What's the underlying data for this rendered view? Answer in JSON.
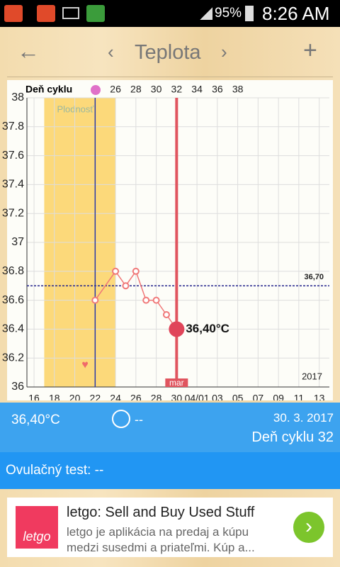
{
  "status_bar": {
    "battery": "95%",
    "time": "8:26 AM"
  },
  "header": {
    "title": "Teplota"
  },
  "chart_data": {
    "type": "line",
    "x2_label": "Deň cyklu",
    "x": [
      22,
      24,
      25,
      26,
      27,
      28,
      29,
      30
    ],
    "series": [
      {
        "color": "#f07878",
        "values": [
          36.6,
          36.8,
          36.7,
          36.8,
          36.6,
          36.6,
          36.5,
          36.4
        ],
        "value_labels": [
          null,
          null,
          null,
          null,
          null,
          null,
          null,
          "36,40°C"
        ]
      }
    ],
    "xlim": [
      15.3,
      45
    ],
    "xticks": [
      16,
      18,
      20,
      22,
      24,
      26,
      28,
      30,
      {
        "value": 32,
        "label": "04/01"
      },
      {
        "value": 34,
        "label": "03"
      },
      {
        "value": 36,
        "label": "05"
      },
      {
        "value": 38,
        "label": "07"
      },
      {
        "value": 40,
        "label": "09"
      },
      {
        "value": 42,
        "label": "11"
      },
      {
        "value": 44,
        "label": "13"
      }
    ],
    "x2lim": [
      17.3,
      47
    ],
    "x2ticks": [
      26,
      28,
      30,
      32,
      34,
      36,
      38
    ],
    "ylim": [
      36,
      38
    ],
    "yticks": [
      36,
      36.2,
      36.4,
      36.6,
      36.8,
      37,
      37.2,
      37.4,
      37.6,
      37.8,
      38
    ],
    "grid": true,
    "fertile_window": {
      "x": [
        17,
        24
      ],
      "label": "Plodnosť",
      "color": "#fcd97a"
    },
    "ovulation_line": {
      "x": 22,
      "color": "#2a3aa8"
    },
    "today_line": {
      "x": 30,
      "label": "mar",
      "color": "#e0555f"
    },
    "reference_line": {
      "y": 36.7,
      "label": "36,70",
      "color": "#24248c"
    },
    "heart_marks": [
      {
        "x": 21,
        "y": 36.15
      }
    ],
    "year_label": "2017"
  },
  "info": {
    "temperature": "36,40°C",
    "note": "--",
    "date": "30. 3. 2017",
    "cycle_day": "Deň cyklu 32",
    "ovulation_test": "Ovulačný test: --"
  },
  "ad": {
    "logo": "letgo",
    "title": "letgo: Sell and Buy Used Stuff",
    "text": "letgo je aplikácia na predaj a kúpu medzi susedmi a priateľmi. Kúp a..."
  }
}
